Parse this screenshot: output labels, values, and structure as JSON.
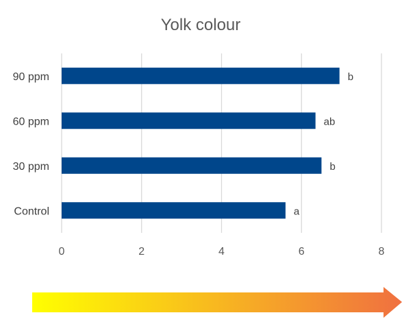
{
  "chart_data": {
    "type": "bar",
    "orientation": "horizontal",
    "title": "Yolk colour",
    "xlabel": "",
    "ylabel": "",
    "categories": [
      "Control",
      "30 ppm",
      "60 ppm",
      "90 ppm"
    ],
    "values": [
      5.6,
      6.5,
      6.35,
      6.95
    ],
    "data_labels": [
      "a",
      "b",
      "ab",
      "b"
    ],
    "xlim": [
      0,
      8
    ],
    "x_ticks": [
      0,
      2,
      4,
      6,
      8
    ],
    "grid": true,
    "legend": "none",
    "bar_color": "#00468b"
  },
  "decoration": {
    "arrow": "gradient-arrow",
    "gradient_start": "#ffff00",
    "gradient_end": "#f07040"
  }
}
